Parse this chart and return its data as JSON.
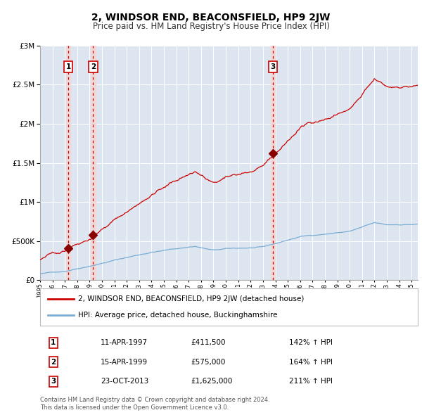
{
  "title": "2, WINDSOR END, BEACONSFIELD, HP9 2JW",
  "subtitle": "Price paid vs. HM Land Registry's House Price Index (HPI)",
  "legend_line1": "2, WINDSOR END, BEACONSFIELD, HP9 2JW (detached house)",
  "legend_line2": "HPI: Average price, detached house, Buckinghamshire",
  "footer1": "Contains HM Land Registry data © Crown copyright and database right 2024.",
  "footer2": "This data is licensed under the Open Government Licence v3.0.",
  "sales": [
    {
      "num": 1,
      "date": "11-APR-1997",
      "price": 411500,
      "year": 1997.28,
      "label": "£411,500",
      "pct": "142% ↑ HPI"
    },
    {
      "num": 2,
      "date": "15-APR-1999",
      "price": 575000,
      "year": 1999.28,
      "label": "£575,000",
      "pct": "164% ↑ HPI"
    },
    {
      "num": 3,
      "date": "23-OCT-2013",
      "price": 1625000,
      "year": 2013.81,
      "label": "£1,625,000",
      "pct": "211% ↑ HPI"
    }
  ],
  "ylim": [
    0,
    3000000
  ],
  "xlim": [
    1995.0,
    2025.5
  ],
  "background_color": "#ffffff",
  "plot_bg_color": "#dde6f0",
  "grid_color": "#ffffff",
  "red_line_color": "#cc0000",
  "blue_line_color": "#7aadd4",
  "sale_marker_color": "#880000",
  "vline_color": "#cc0000",
  "vline_shade": "#f0d8d8",
  "box_edge_color": "#cc0000",
  "title_fontsize": 10,
  "subtitle_fontsize": 8.5
}
